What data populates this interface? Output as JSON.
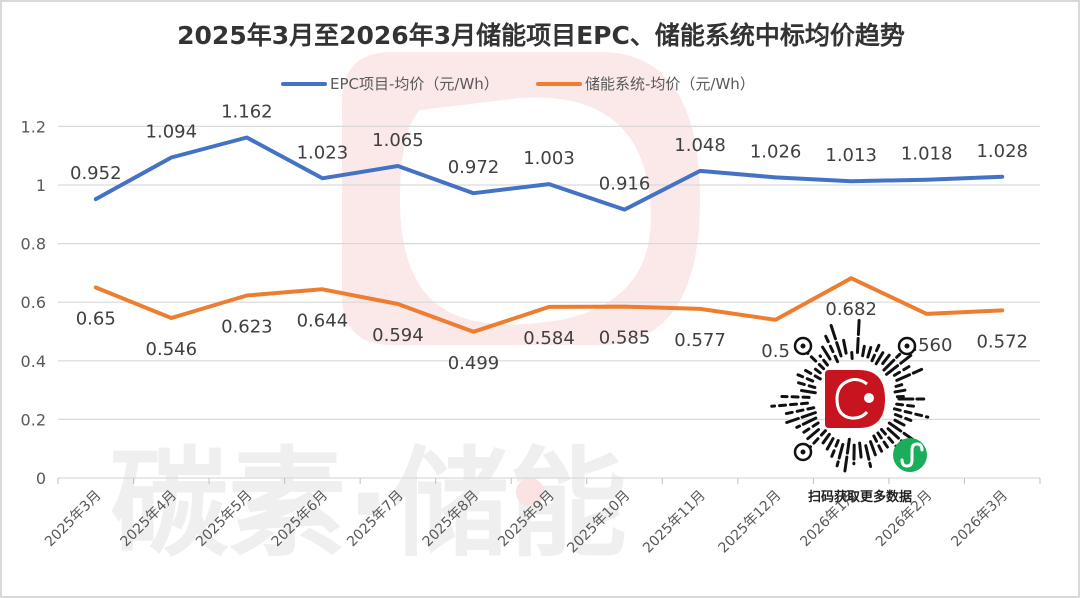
{
  "chart_data": {
    "type": "line",
    "title": "2025年3月至2026年3月储能项目EPC、储能系统中标均价趋势",
    "xlabel": "",
    "ylabel": "",
    "ylim": [
      0,
      1.2
    ],
    "yticks": [
      0,
      0.2,
      0.4,
      0.6,
      0.8,
      1,
      1.2
    ],
    "ytick_labels": [
      "0",
      "0.2",
      "0.4",
      "0.6",
      "0.8",
      "1",
      "1.2"
    ],
    "grid": true,
    "legend_position": "top",
    "categories": [
      "2025年3月",
      "2025年4月",
      "2025年5月",
      "2025年6月",
      "2025年7月",
      "2025年8月",
      "2025年9月",
      "2025年10月",
      "2025年11月",
      "2025年12月",
      "2026年1月",
      "2026年2月",
      "2026年3月"
    ],
    "series": [
      {
        "name": "EPC项目-均价（元/Wh）",
        "color": "#4472C4",
        "values": [
          0.952,
          1.094,
          1.162,
          1.023,
          1.065,
          0.972,
          1.003,
          0.916,
          1.048,
          1.026,
          1.013,
          1.018,
          1.028
        ],
        "labels": [
          "0.952",
          "1.094",
          "1.162",
          "1.023",
          "1.065",
          "0.972",
          "1.003",
          "0.916",
          "1.048",
          "1.026",
          "1.013",
          "1.018",
          "1.028"
        ],
        "label_position": "above"
      },
      {
        "name": "储能系统-均价（元/Wh）",
        "color": "#ED7D31",
        "values": [
          0.65,
          0.546,
          0.623,
          0.644,
          0.594,
          0.499,
          0.584,
          0.585,
          0.577,
          0.54,
          0.682,
          0.56,
          0.572
        ],
        "labels": [
          "0.65",
          "0.546",
          "0.623",
          "0.644",
          "0.594",
          "0.499",
          "0.584",
          "0.585",
          "0.577",
          "0.5",
          "0.682",
          "0.560",
          "0.572"
        ],
        "label_position": "below"
      }
    ]
  },
  "watermark": {
    "text": "碳素·储能",
    "logo_color": "#fbe9ea",
    "dot_color": "#fbe3e4"
  },
  "qr_badge": {
    "caption": "扫码获取更多数据",
    "logo_color": "#c8141e",
    "miniprogram_color": "#1aad5b",
    "icon": "wechat-miniprogram-icon"
  },
  "colors": {
    "grid": "#d9d9d9",
    "axis_text": "#595959",
    "title": "#333333",
    "frame": "#d9d9d9"
  }
}
